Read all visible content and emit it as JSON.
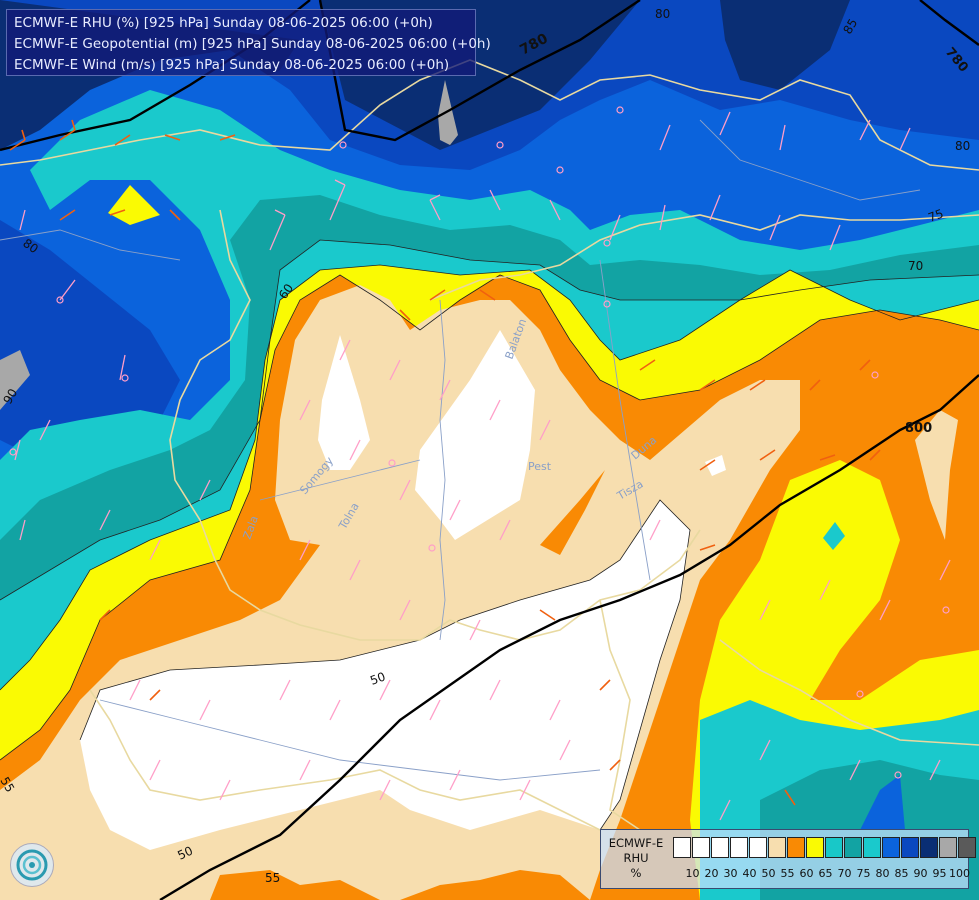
{
  "title": {
    "lines": [
      "ECMWF-E RHU (%) [925 hPa] Sunday 08-06-2025 06:00 (+0h)",
      "ECMWF-E Geopotential (m) [925 hPa] Sunday 08-06-2025 06:00 (+0h)",
      "ECMWF-E Wind (m/s) [925 hPa] Sunday 08-06-2025 06:00 (+0h)"
    ]
  },
  "legend": {
    "model": "ECMWF-E",
    "variable": "RHU",
    "unit": "%",
    "colors": [
      "#ffffff",
      "#ffffff",
      "#ffffff",
      "#ffffff",
      "#ffffff",
      "#f7deaf",
      "#f98a04",
      "#fafa03",
      "#18c8c8",
      "#12a3a3",
      "#1ac9cc",
      "#0b63dc",
      "#0a48c0",
      "#0a2e74",
      "#a8a8a8",
      "#5a5a5a"
    ],
    "ticks": [
      "10",
      "20",
      "30",
      "40",
      "50",
      "55",
      "60",
      "65",
      "70",
      "75",
      "80",
      "85",
      "90",
      "95",
      "100"
    ]
  },
  "contour_labels": [
    {
      "text": "780",
      "kind": "geopotential"
    },
    {
      "text": "780",
      "kind": "geopotential"
    },
    {
      "text": "800",
      "kind": "geopotential"
    },
    {
      "text": "80",
      "kind": "rhu"
    },
    {
      "text": "80",
      "kind": "rhu"
    },
    {
      "text": "80",
      "kind": "rhu"
    },
    {
      "text": "85",
      "kind": "rhu"
    },
    {
      "text": "75",
      "kind": "rhu"
    },
    {
      "text": "70",
      "kind": "rhu"
    },
    {
      "text": "60",
      "kind": "rhu"
    },
    {
      "text": "50",
      "kind": "rhu"
    },
    {
      "text": "50",
      "kind": "rhu"
    },
    {
      "text": "55",
      "kind": "rhu"
    },
    {
      "text": "55",
      "kind": "rhu"
    },
    {
      "text": "90",
      "kind": "rhu"
    }
  ],
  "place_labels": [
    "Balaton",
    "Zala",
    "Somogy",
    "Tolna",
    "Pest",
    "Duna",
    "Tisza"
  ],
  "colors": {
    "rhu_95": "#0a2e74",
    "rhu_90": "#0a48c0",
    "rhu_85": "#0b63dc",
    "rhu_80": "#1ac9cc",
    "rhu_75": "#12a3a3",
    "rhu_65": "#fafa03",
    "rhu_60": "#f98a04",
    "rhu_55": "#f7deaf",
    "rhu_50": "#ffffff",
    "border": "#e8d9a0",
    "river": "#8aa0c8"
  },
  "icons": {
    "logo": "ecmwf-logo-icon"
  }
}
